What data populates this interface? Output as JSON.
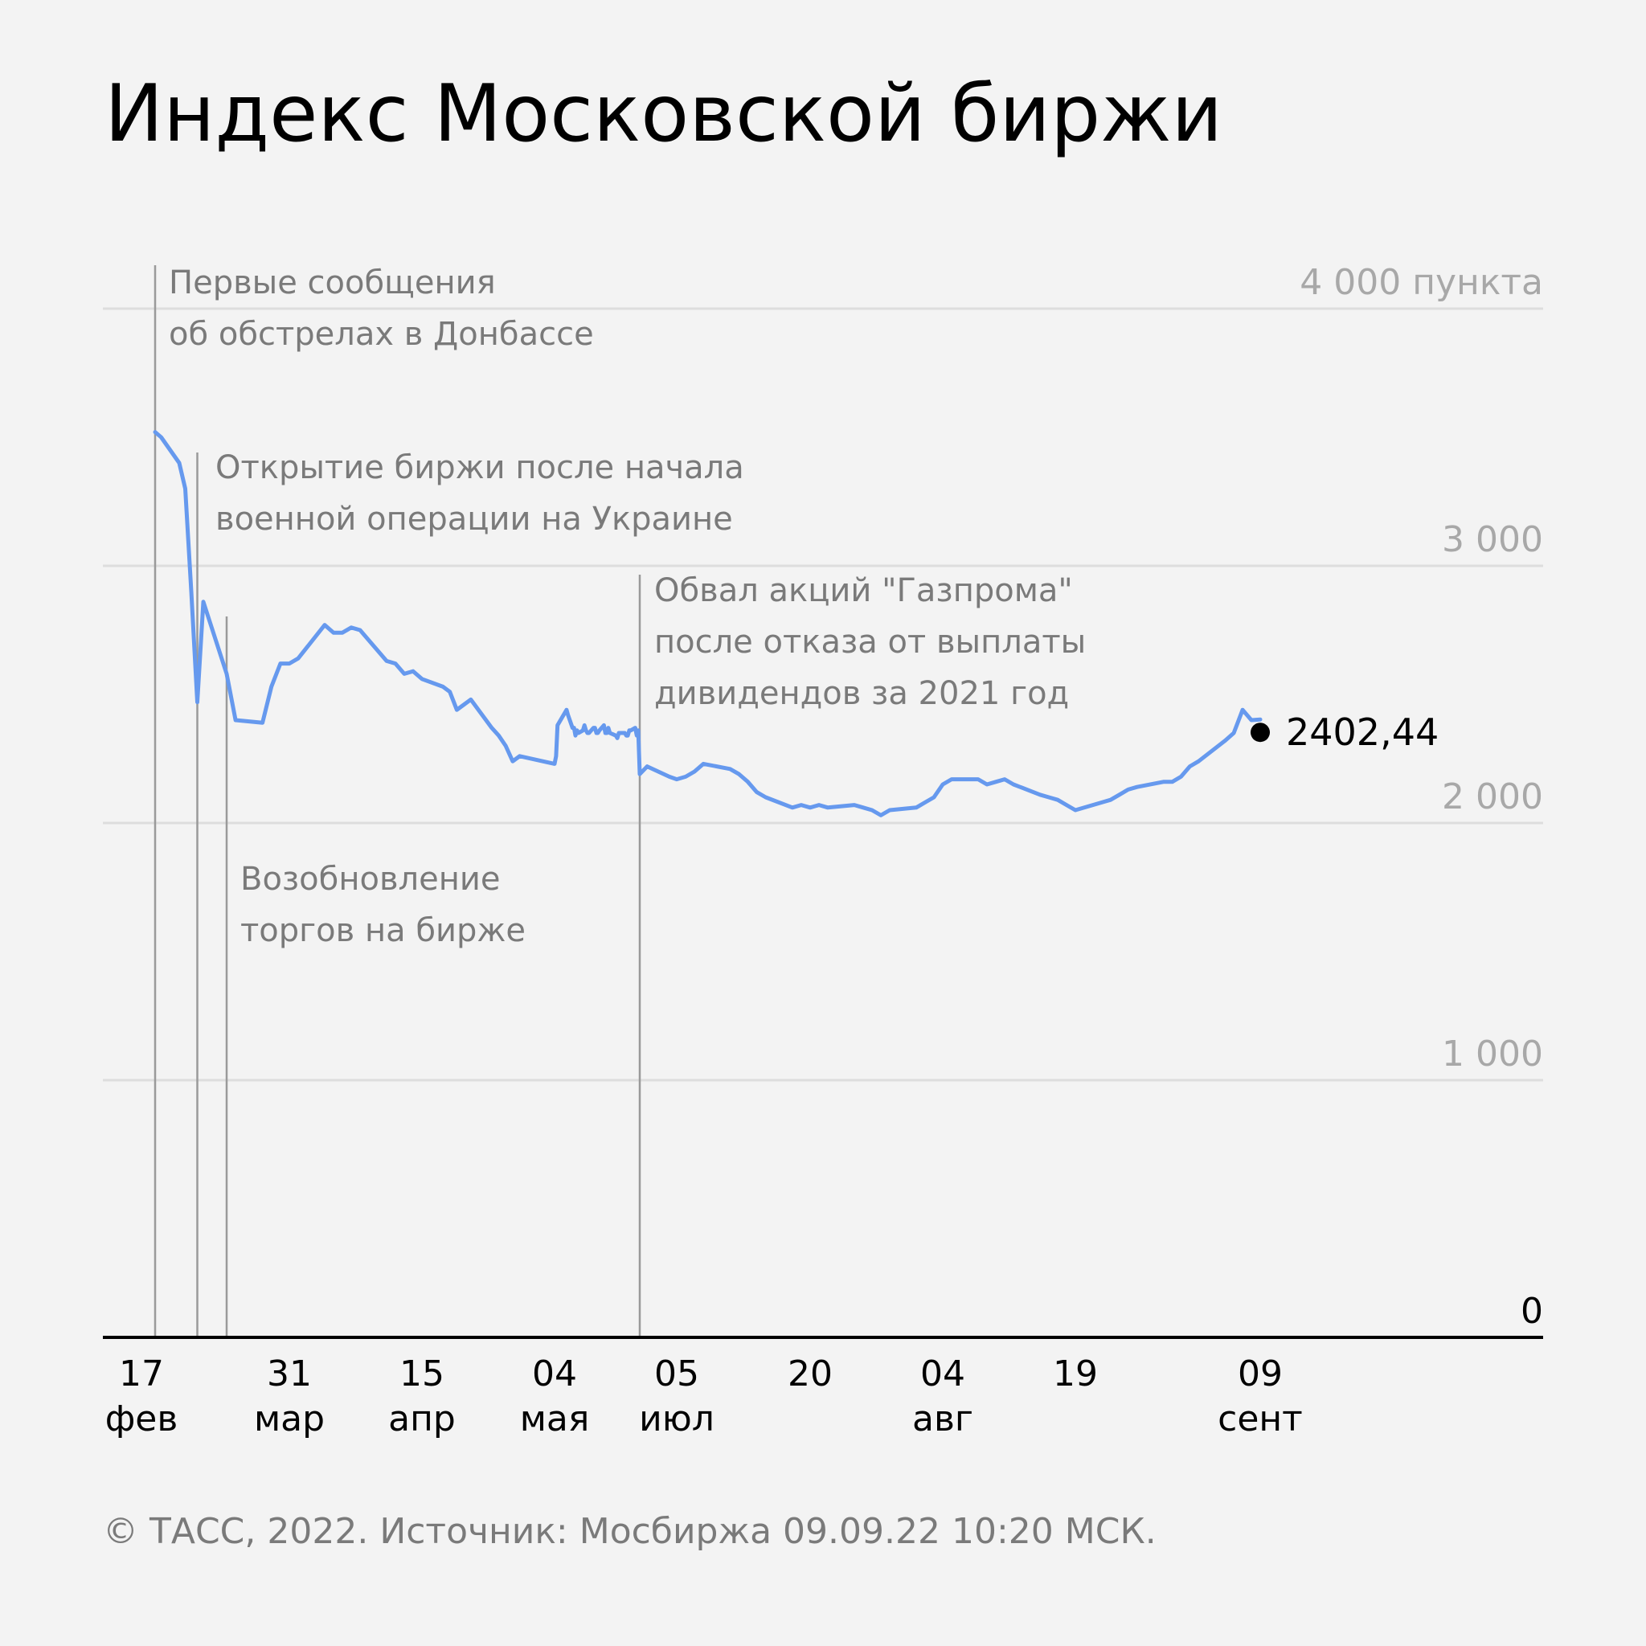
{
  "title": "Индекс Московской биржи",
  "source": "© ТАСС, 2022. Источник: Мосбиржа 09.09.22 10:20 МСК.",
  "colors": {
    "line": "#6699ee",
    "grid": "#dddddd",
    "marker": "#7a7a7a",
    "text_muted": "#7a7a7a",
    "tick": "#a8a8a8"
  },
  "chart_data": {
    "type": "line",
    "ylim": [
      0,
      4000
    ],
    "grid": true,
    "y_ticks": [
      {
        "value": 4000,
        "label": "4 000 пункта"
      },
      {
        "value": 3000,
        "label": "3 000"
      },
      {
        "value": 2000,
        "label": "2 000"
      },
      {
        "value": 1000,
        "label": "1 000"
      },
      {
        "value": 0,
        "label": "0"
      }
    ],
    "x_ticks": [
      {
        "date": "2022-02-17",
        "day": "17",
        "month": "фев"
      },
      {
        "date": "2022-03-31",
        "day": "31",
        "month": "мар"
      },
      {
        "date": "2022-04-15",
        "day": "15",
        "month": "апр"
      },
      {
        "date": "2022-05-04",
        "day": "04",
        "month": "мая"
      },
      {
        "date": "2022-07-05",
        "day": "05",
        "month": "июл"
      },
      {
        "date": "2022-07-20",
        "day": "20",
        "month": ""
      },
      {
        "date": "2022-08-04",
        "day": "04",
        "month": "авг"
      },
      {
        "date": "2022-08-19",
        "day": "19",
        "month": ""
      },
      {
        "date": "2022-09-09",
        "day": "09",
        "month": "сент"
      }
    ],
    "last_value_label": "2402,44",
    "annotations": [
      {
        "date": "2022-02-17",
        "lines": [
          "Первые сообщения",
          "об обстрелах в Донбассе"
        ]
      },
      {
        "date": "2022-02-24",
        "lines": [
          "Открытие биржи после начала",
          "военной операции на Украине"
        ]
      },
      {
        "date": "2022-03-24",
        "lines": [
          "Возобновление",
          "торгов на бирже"
        ]
      },
      {
        "date": "2022-06-30",
        "lines": [
          "Обвал акций \"Газпрома\"",
          "после отказа от выплаты",
          "дивидендов за 2021 год"
        ]
      }
    ],
    "series": [
      {
        "points": [
          [
            "2022-02-17",
            3520
          ],
          [
            "2022-02-18",
            3500
          ],
          [
            "2022-02-21",
            3400
          ],
          [
            "2022-02-22",
            3300
          ],
          [
            "2022-02-23",
            2900
          ],
          [
            "2022-02-24",
            2470
          ],
          [
            "2022-02-25",
            2860
          ],
          [
            "2022-03-24",
            2580
          ],
          [
            "2022-03-25",
            2400
          ],
          [
            "2022-03-28",
            2390
          ],
          [
            "2022-03-29",
            2530
          ],
          [
            "2022-03-30",
            2620
          ],
          [
            "2022-03-31",
            2620
          ],
          [
            "2022-04-01",
            2640
          ],
          [
            "2022-04-04",
            2770
          ],
          [
            "2022-04-05",
            2740
          ],
          [
            "2022-04-06",
            2740
          ],
          [
            "2022-04-07",
            2760
          ],
          [
            "2022-04-08",
            2750
          ],
          [
            "2022-04-11",
            2630
          ],
          [
            "2022-04-12",
            2620
          ],
          [
            "2022-04-13",
            2580
          ],
          [
            "2022-04-14",
            2590
          ],
          [
            "2022-04-15",
            2560
          ],
          [
            "2022-04-18",
            2530
          ],
          [
            "2022-04-19",
            2510
          ],
          [
            "2022-04-20",
            2440
          ],
          [
            "2022-04-21",
            2460
          ],
          [
            "2022-04-22",
            2480
          ],
          [
            "2022-04-25",
            2370
          ],
          [
            "2022-04-26",
            2340
          ],
          [
            "2022-04-27",
            2300
          ],
          [
            "2022-04-28",
            2240
          ],
          [
            "2022-04-29",
            2260
          ],
          [
            "2022-05-04",
            2230
          ],
          [
            "2022-05-05",
            2260
          ],
          [
            "2022-05-06",
            2380
          ],
          [
            "2022-05-12",
            2440
          ],
          [
            "2022-05-13",
            2420
          ],
          [
            "2022-05-16",
            2370
          ],
          [
            "2022-05-17",
            2370
          ],
          [
            "2022-05-18",
            2340
          ],
          [
            "2022-05-19",
            2360
          ],
          [
            "2022-05-20",
            2350
          ],
          [
            "2022-05-23",
            2360
          ],
          [
            "2022-05-24",
            2380
          ],
          [
            "2022-05-25",
            2360
          ],
          [
            "2022-05-26",
            2350
          ],
          [
            "2022-05-27",
            2350
          ],
          [
            "2022-05-30",
            2370
          ],
          [
            "2022-05-31",
            2370
          ],
          [
            "2022-06-01",
            2350
          ],
          [
            "2022-06-02",
            2350
          ],
          [
            "2022-06-03",
            2360
          ],
          [
            "2022-06-06",
            2380
          ],
          [
            "2022-06-07",
            2350
          ],
          [
            "2022-06-08",
            2350
          ],
          [
            "2022-06-09",
            2370
          ],
          [
            "2022-06-10",
            2350
          ],
          [
            "2022-06-14",
            2340
          ],
          [
            "2022-06-15",
            2330
          ],
          [
            "2022-06-16",
            2350
          ],
          [
            "2022-06-17",
            2350
          ],
          [
            "2022-06-20",
            2350
          ],
          [
            "2022-06-21",
            2340
          ],
          [
            "2022-06-22",
            2340
          ],
          [
            "2022-06-23",
            2360
          ],
          [
            "2022-06-24",
            2360
          ],
          [
            "2022-06-27",
            2370
          ],
          [
            "2022-06-28",
            2340
          ],
          [
            "2022-06-29",
            2360
          ],
          [
            "2022-06-30",
            2190
          ],
          [
            "2022-07-01",
            2220
          ],
          [
            "2022-07-04",
            2180
          ],
          [
            "2022-07-05",
            2170
          ],
          [
            "2022-07-06",
            2180
          ],
          [
            "2022-07-07",
            2200
          ],
          [
            "2022-07-08",
            2230
          ],
          [
            "2022-07-11",
            2210
          ],
          [
            "2022-07-12",
            2190
          ],
          [
            "2022-07-13",
            2160
          ],
          [
            "2022-07-14",
            2120
          ],
          [
            "2022-07-15",
            2100
          ],
          [
            "2022-07-18",
            2060
          ],
          [
            "2022-07-19",
            2070
          ],
          [
            "2022-07-20",
            2060
          ],
          [
            "2022-07-21",
            2070
          ],
          [
            "2022-07-22",
            2060
          ],
          [
            "2022-07-25",
            2070
          ],
          [
            "2022-07-26",
            2060
          ],
          [
            "2022-07-27",
            2050
          ],
          [
            "2022-07-28",
            2030
          ],
          [
            "2022-07-29",
            2050
          ],
          [
            "2022-08-01",
            2060
          ],
          [
            "2022-08-02",
            2080
          ],
          [
            "2022-08-03",
            2100
          ],
          [
            "2022-08-04",
            2150
          ],
          [
            "2022-08-05",
            2170
          ],
          [
            "2022-08-08",
            2170
          ],
          [
            "2022-08-09",
            2150
          ],
          [
            "2022-08-10",
            2160
          ],
          [
            "2022-08-11",
            2170
          ],
          [
            "2022-08-12",
            2150
          ],
          [
            "2022-08-15",
            2110
          ],
          [
            "2022-08-16",
            2100
          ],
          [
            "2022-08-17",
            2090
          ],
          [
            "2022-08-18",
            2070
          ],
          [
            "2022-08-19",
            2050
          ],
          [
            "2022-08-22",
            2080
          ],
          [
            "2022-08-23",
            2090
          ],
          [
            "2022-08-24",
            2110
          ],
          [
            "2022-08-25",
            2130
          ],
          [
            "2022-08-26",
            2140
          ],
          [
            "2022-08-29",
            2160
          ],
          [
            "2022-08-30",
            2160
          ],
          [
            "2022-08-31",
            2180
          ],
          [
            "2022-09-01",
            2220
          ],
          [
            "2022-09-02",
            2240
          ],
          [
            "2022-09-05",
            2320
          ],
          [
            "2022-09-06",
            2350
          ],
          [
            "2022-09-07",
            2440
          ],
          [
            "2022-09-08",
            2400
          ],
          [
            "2022-09-09",
            2402.44
          ]
        ]
      }
    ]
  }
}
